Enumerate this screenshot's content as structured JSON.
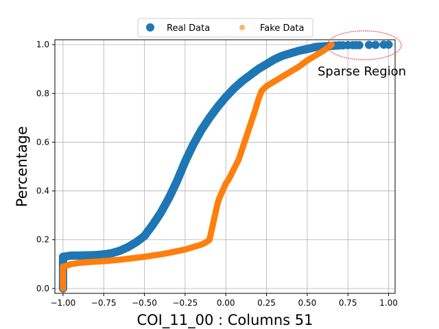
{
  "chart_data": {
    "type": "scatter",
    "title": "",
    "xlabel": "COI_11_00 : Columns 51",
    "ylabel": "Percentage",
    "xlim": [
      -1.05,
      1.04
    ],
    "ylim": [
      -0.02,
      1.02
    ],
    "xticks": [
      -1.0,
      -0.75,
      -0.5,
      -0.25,
      0.0,
      0.25,
      0.5,
      0.75,
      1.0
    ],
    "xtick_labels": [
      "−1.00",
      "−0.75",
      "−0.50",
      "−0.25",
      "0.00",
      "0.25",
      "0.50",
      "0.75",
      "1.00"
    ],
    "yticks": [
      0.0,
      0.2,
      0.4,
      0.6,
      0.8,
      1.0
    ],
    "ytick_labels": [
      "0.0",
      "0.2",
      "0.4",
      "0.6",
      "0.8",
      "1.0"
    ],
    "grid": true,
    "legend": {
      "placement": "top-center",
      "entries": [
        "Real Data",
        "Fake Data"
      ]
    },
    "annotation": {
      "text": "Sparse Region",
      "target_x_range": [
        0.65,
        1.07
      ],
      "target_y": 1.0,
      "color": "#e8434a"
    },
    "series": [
      {
        "name": "Real Data",
        "color": "#1f77b4",
        "opacity": 1.0,
        "size": "large",
        "x": [
          -1.0,
          -1.0,
          -1.0,
          -1.0,
          -1.0,
          -1.0,
          -1.0,
          -1.0,
          -0.95,
          -0.9,
          -0.85,
          -0.8,
          -0.75,
          -0.7,
          -0.65,
          -0.6,
          -0.55,
          -0.5,
          -0.45,
          -0.4,
          -0.35,
          -0.3,
          -0.25,
          -0.2,
          -0.15,
          -0.1,
          -0.05,
          0.0,
          0.05,
          0.1,
          0.15,
          0.2,
          0.25,
          0.3,
          0.35,
          0.4,
          0.45,
          0.5,
          0.55,
          0.6,
          0.65,
          0.7,
          0.72,
          0.75,
          0.78,
          0.8,
          0.82,
          0.88,
          0.92,
          0.97,
          1.0
        ],
        "y": [
          0.0,
          0.02,
          0.04,
          0.06,
          0.08,
          0.1,
          0.12,
          0.13,
          0.135,
          0.135,
          0.136,
          0.137,
          0.14,
          0.145,
          0.155,
          0.17,
          0.19,
          0.215,
          0.26,
          0.31,
          0.37,
          0.44,
          0.52,
          0.59,
          0.65,
          0.7,
          0.745,
          0.785,
          0.82,
          0.85,
          0.875,
          0.9,
          0.92,
          0.94,
          0.955,
          0.965,
          0.975,
          0.982,
          0.99,
          0.993,
          0.995,
          0.997,
          0.997,
          0.998,
          0.998,
          0.998,
          0.998,
          0.999,
          0.999,
          1.0,
          1.0
        ]
      },
      {
        "name": "Fake Data",
        "color": "#ff7f0e",
        "opacity": 1.0,
        "size": "medium",
        "x": [
          -1.0,
          -1.0,
          -1.0,
          -1.0,
          -1.0,
          -1.0,
          -0.97,
          -0.95,
          -0.9,
          -0.85,
          -0.8,
          -0.75,
          -0.7,
          -0.65,
          -0.6,
          -0.55,
          -0.5,
          -0.45,
          -0.4,
          -0.35,
          -0.3,
          -0.25,
          -0.2,
          -0.15,
          -0.12,
          -0.1,
          -0.09,
          -0.08,
          -0.07,
          -0.06,
          -0.05,
          -0.04,
          -0.02,
          0.0,
          0.02,
          0.05,
          0.08,
          0.1,
          0.12,
          0.14,
          0.16,
          0.18,
          0.2,
          0.22,
          0.25,
          0.3,
          0.35,
          0.4,
          0.45,
          0.5,
          0.55,
          0.6,
          0.63,
          0.65
        ],
        "y": [
          0.0,
          0.02,
          0.04,
          0.06,
          0.08,
          0.09,
          0.095,
          0.1,
          0.105,
          0.108,
          0.11,
          0.112,
          0.115,
          0.118,
          0.122,
          0.126,
          0.13,
          0.135,
          0.14,
          0.146,
          0.153,
          0.16,
          0.17,
          0.18,
          0.19,
          0.2,
          0.23,
          0.26,
          0.29,
          0.32,
          0.35,
          0.37,
          0.4,
          0.43,
          0.45,
          0.49,
          0.53,
          0.57,
          0.61,
          0.65,
          0.69,
          0.73,
          0.775,
          0.81,
          0.83,
          0.85,
          0.87,
          0.89,
          0.91,
          0.935,
          0.955,
          0.975,
          0.99,
          1.0
        ]
      }
    ]
  }
}
